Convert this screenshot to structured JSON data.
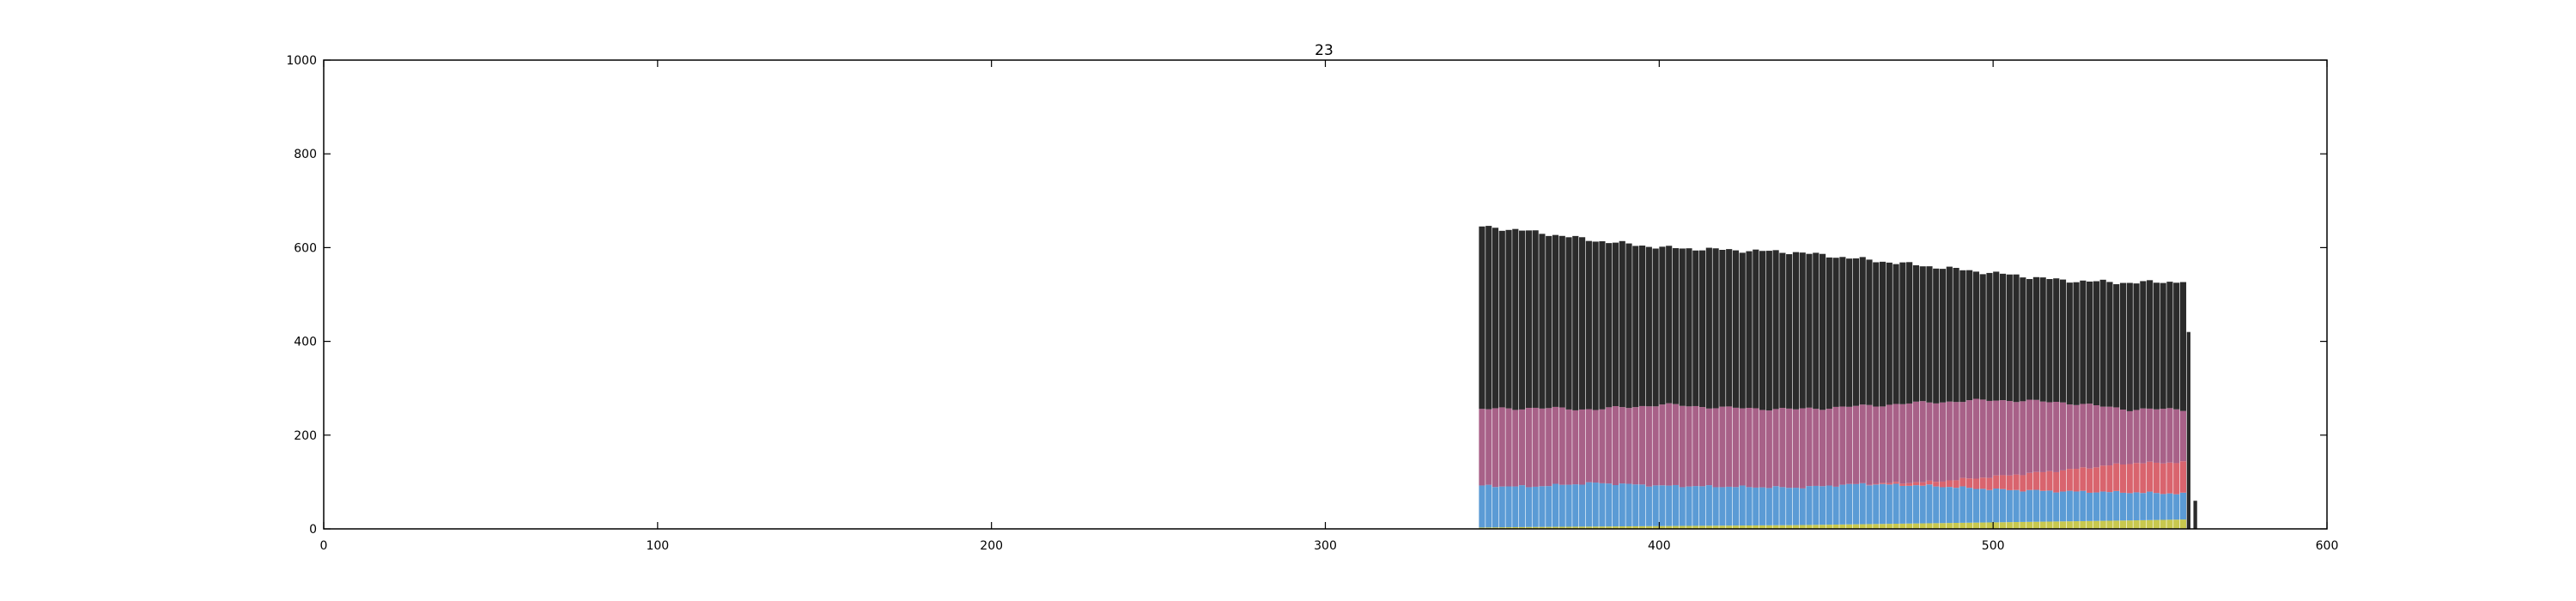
{
  "chart_data": {
    "type": "bar",
    "stacked": true,
    "title": "23",
    "xlabel": "",
    "ylabel": "",
    "xlim": [
      0,
      600
    ],
    "ylim": [
      0,
      1000
    ],
    "xticks": [
      0,
      100,
      200,
      300,
      400,
      500,
      600
    ],
    "yticks": [
      0,
      200,
      400,
      600,
      800,
      1000
    ],
    "grid": false,
    "legend": "none",
    "x_start": 346,
    "x_step": 2,
    "colors": {
      "layer1": "#c8c84e",
      "layer2": "#5b9bd5",
      "layer3": "#d9646e",
      "layer4": "#a86188",
      "layer5": "#2b2b2b"
    },
    "profile_points": {
      "x": [
        346,
        360,
        380,
        400,
        420,
        440,
        460,
        480,
        500,
        520,
        540,
        556
      ],
      "layer1_top": [
        3,
        4,
        5,
        6,
        7,
        8,
        10,
        12,
        14,
        16,
        18,
        20
      ],
      "layer2_top": [
        92,
        90,
        98,
        92,
        90,
        88,
        96,
        92,
        84,
        80,
        78,
        75
      ],
      "layer3_top": [
        92,
        90,
        98,
        92,
        90,
        88,
        96,
        100,
        112,
        125,
        140,
        142
      ],
      "layer4_top": [
        255,
        258,
        255,
        265,
        258,
        255,
        262,
        270,
        275,
        270,
        255,
        255
      ],
      "layer5_top": [
        645,
        635,
        615,
        600,
        595,
        590,
        575,
        560,
        545,
        530,
        525,
        528
      ]
    },
    "tail": {
      "x": [
        558,
        560
      ],
      "layer5_top": [
        420,
        60
      ]
    }
  }
}
